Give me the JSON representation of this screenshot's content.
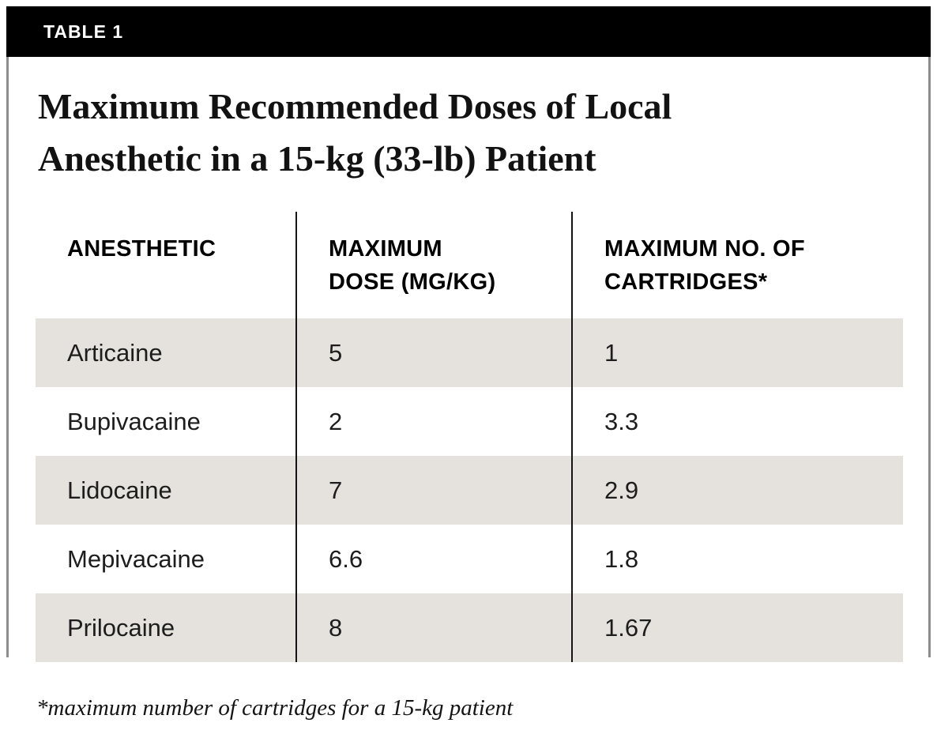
{
  "tag": {
    "label": "TABLE 1"
  },
  "title": {
    "line1": "Maximum Recommended Doses of Local",
    "line2": "Anesthetic in a 15-kg (33-lb) Patient"
  },
  "table": {
    "headers": [
      {
        "line1": "ANESTHETIC",
        "line2": ""
      },
      {
        "line1": "MAXIMUM",
        "line2": "DOSE (MG/KG)"
      },
      {
        "line1": "MAXIMUM NO. OF",
        "line2": "CARTRIDGES*"
      }
    ],
    "rows": [
      {
        "anesthetic": "Articaine",
        "max_dose_mg_kg": "5",
        "max_cartridges": "1"
      },
      {
        "anesthetic": "Bupivacaine",
        "max_dose_mg_kg": "2",
        "max_cartridges": "3.3"
      },
      {
        "anesthetic": "Lidocaine",
        "max_dose_mg_kg": "7",
        "max_cartridges": "2.9"
      },
      {
        "anesthetic": "Mepivacaine",
        "max_dose_mg_kg": "6.6",
        "max_cartridges": "1.8"
      },
      {
        "anesthetic": "Prilocaine",
        "max_dose_mg_kg": "8",
        "max_cartridges": "1.67"
      }
    ]
  },
  "footnote": "*maximum number of cartridges for a 15-kg patient",
  "colors": {
    "header_bar": "#000000",
    "bar_text": "#ffffff",
    "row_shade": "#e5e1dc",
    "column_divider": "#141414",
    "card_side_border": "#8d8d8d"
  }
}
